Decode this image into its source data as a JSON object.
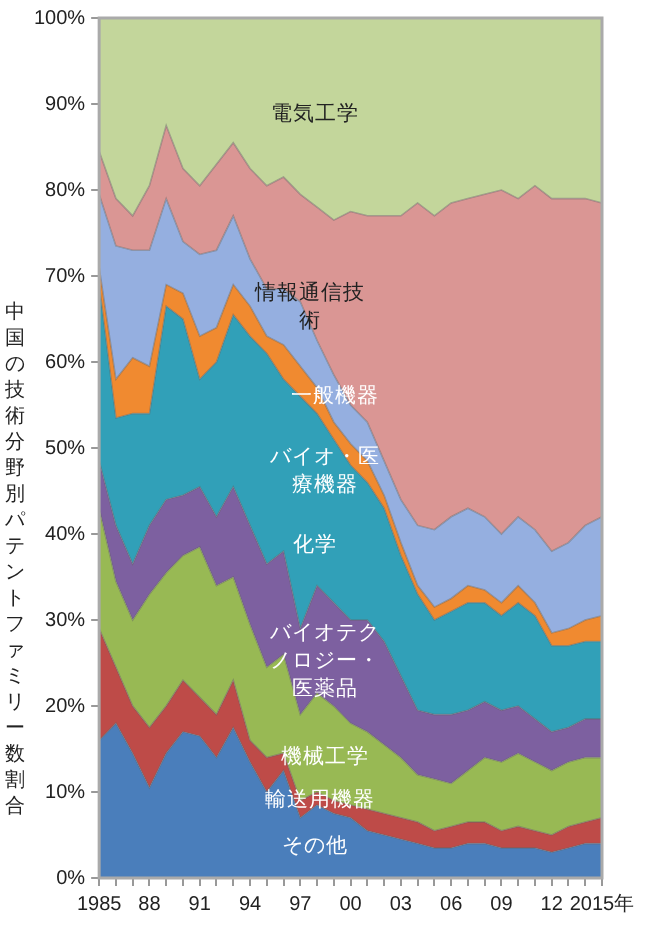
{
  "chart_data": {
    "type": "area",
    "stacked": true,
    "ylabel": "中国の技術分野別パテントファミリー数割合",
    "categories": [
      "1985",
      null,
      null,
      "88",
      null,
      null,
      "91",
      null,
      null,
      "94",
      null,
      null,
      "97",
      null,
      null,
      "00",
      null,
      null,
      "03",
      null,
      null,
      "06",
      null,
      null,
      "09",
      null,
      null,
      "12",
      null,
      null,
      "2015年"
    ],
    "ylim": [
      0,
      100
    ],
    "yticks": [
      {
        "value": 0,
        "label": "0%"
      },
      {
        "value": 10,
        "label": "10%"
      },
      {
        "value": 20,
        "label": "20%"
      },
      {
        "value": 30,
        "label": "30%"
      },
      {
        "value": 40,
        "label": "40%"
      },
      {
        "value": 50,
        "label": "50%"
      },
      {
        "value": 60,
        "label": "60%"
      },
      {
        "value": 70,
        "label": "70%"
      },
      {
        "value": 80,
        "label": "80%"
      },
      {
        "value": 90,
        "label": "90%"
      },
      {
        "value": 100,
        "label": "100%"
      }
    ],
    "grid": false,
    "legend": false,
    "series": [
      {
        "name": "その他",
        "color": "#4a7ebb",
        "values": [
          16,
          18,
          14.5,
          10.5,
          14.5,
          17,
          16.5,
          14,
          17.5,
          13.5,
          10,
          12.5,
          7,
          8.5,
          7.5,
          7,
          5.5,
          5,
          4.5,
          4,
          3.5,
          3.5,
          4,
          4,
          3.5,
          3.5,
          3.5,
          3,
          3.5,
          4,
          4
        ]
      },
      {
        "name": "輸送用機器",
        "color": "#be4b48",
        "values": [
          13,
          6.5,
          5.5,
          7,
          5.5,
          6,
          4.5,
          5,
          5.5,
          2.5,
          4,
          2,
          2,
          1.5,
          1.5,
          1.5,
          2.5,
          2.5,
          2.5,
          2.5,
          2,
          2.5,
          2.5,
          2.5,
          2,
          2.5,
          2,
          2,
          2.5,
          2.5,
          3
        ]
      },
      {
        "name": "機械工学",
        "color": "#98b954",
        "values": [
          14,
          10,
          10,
          15.5,
          15.5,
          14.5,
          17.5,
          15,
          12,
          13.5,
          10.5,
          11.5,
          10,
          11.5,
          11,
          9.5,
          9,
          8,
          7,
          5.5,
          6,
          5,
          6,
          7.5,
          8,
          8.5,
          8,
          7.5,
          7.5,
          7.5,
          7
        ]
      },
      {
        "name": "バイオテクノロジー・医薬品",
        "color": "#7d60a0",
        "values": [
          5.5,
          6.5,
          6.5,
          8,
          8.5,
          7,
          7,
          8,
          10.5,
          11.5,
          12,
          12,
          10,
          12.5,
          12,
          12,
          13,
          12,
          9.5,
          7.5,
          7.5,
          8,
          7,
          6.5,
          6,
          5.5,
          5,
          4.5,
          4,
          4.5,
          4.5
        ]
      },
      {
        "name": "化学",
        "color": "#31a0b8",
        "values": [
          20.5,
          12.5,
          17.5,
          13,
          22.5,
          20.5,
          12.5,
          18,
          20,
          22,
          24.5,
          20,
          27,
          20,
          19,
          18,
          16,
          15.5,
          14,
          13.5,
          11,
          12,
          12.5,
          11.5,
          11,
          12,
          12,
          10,
          9.5,
          9,
          9
        ]
      },
      {
        "name": "バイオ・医療機器",
        "color": "#f08a30",
        "values": [
          2,
          4.5,
          6.5,
          5.5,
          2.5,
          3,
          5,
          4,
          3.5,
          3.5,
          2,
          4,
          3.5,
          3,
          2,
          2.5,
          2.5,
          1.5,
          1.5,
          1,
          1.5,
          1.5,
          2,
          1.5,
          1.5,
          2,
          1.5,
          1.5,
          2,
          2.5,
          3
        ]
      },
      {
        "name": "一般機器",
        "color": "#95afe0",
        "values": [
          8.5,
          15.5,
          12.5,
          13.5,
          10,
          6,
          9.5,
          9,
          8,
          5.5,
          5.5,
          6.5,
          7.5,
          5.5,
          5.5,
          4.5,
          4.5,
          4,
          5,
          7,
          9,
          9.5,
          9,
          8.5,
          8,
          8,
          8.5,
          9.5,
          10,
          11,
          11.5
        ]
      },
      {
        "name": "情報通信技術",
        "color": "#da9694",
        "values": [
          5,
          5.5,
          4,
          7.5,
          8.5,
          8.5,
          8,
          10,
          8.5,
          10.5,
          12,
          13,
          12.5,
          15.5,
          18,
          22.5,
          24,
          28.5,
          33,
          37.5,
          36.5,
          36.5,
          36,
          37.5,
          40,
          37,
          40,
          41,
          40,
          38,
          36.5
        ]
      },
      {
        "name": "電気工学",
        "color": "#c3d69b",
        "values": [
          15.5,
          21,
          23,
          19.5,
          12.5,
          17.5,
          19.5,
          17,
          14.5,
          17.5,
          19.5,
          18.5,
          20.5,
          22,
          23.5,
          22.5,
          23,
          23,
          23,
          21.5,
          23,
          21.5,
          21,
          20.5,
          20,
          21,
          19.5,
          21,
          21,
          21,
          21.5
        ]
      }
    ]
  }
}
